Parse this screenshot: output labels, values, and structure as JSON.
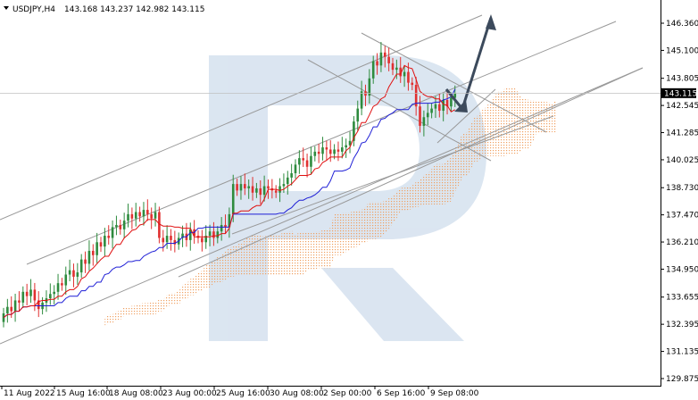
{
  "header": {
    "symbol": "USDJPY,H4",
    "ohlc": "143.168 143.237 142.982 143.115"
  },
  "colors": {
    "bull": "#2e8b3e",
    "bear": "#e03030",
    "kijun": "#1f1fd6",
    "tenkan": "#e01010",
    "cloud_up": "#f0a060",
    "cloud_down": "#c8a0c8",
    "lines": "#999999",
    "arrow": "#3c4a5c",
    "watermark": "#c8d8ea",
    "price_box": "#000000"
  },
  "chart_data": {
    "type": "candlestick",
    "title": "USDJPY,H4",
    "y_ticks": [
      "146.360",
      "145.100",
      "143.805",
      "142.545",
      "141.285",
      "140.025",
      "138.730",
      "137.470",
      "136.210",
      "134.950",
      "133.655",
      "132.395",
      "131.135",
      "129.875"
    ],
    "ylim": [
      129.875,
      147.0
    ],
    "x_ticks": [
      "11 Aug 2022",
      "15 Aug 16:00",
      "18 Aug 08:00",
      "23 Aug 00:00",
      "25 Aug 16:00",
      "30 Aug 08:00",
      "2 Sep 00:00",
      "6 Sep 16:00",
      "9 Sep 08:00"
    ],
    "current_price": "143.115",
    "n_bars": 117,
    "close": [
      132.9,
      133.2,
      133.0,
      133.5,
      133.4,
      133.9,
      133.7,
      134.0,
      133.5,
      133.1,
      133.4,
      133.6,
      133.8,
      133.9,
      134.3,
      134.2,
      134.7,
      134.9,
      134.6,
      134.8,
      135.4,
      135.2,
      135.8,
      135.6,
      136.2,
      136.0,
      136.5,
      136.4,
      136.9,
      137.0,
      136.8,
      137.2,
      137.5,
      137.3,
      137.6,
      137.4,
      137.7,
      137.5,
      137.3,
      137.6,
      136.4,
      136.2,
      136.5,
      136.3,
      136.1,
      136.4,
      136.6,
      136.3,
      136.8,
      136.5,
      136.4,
      136.2,
      136.5,
      136.7,
      136.4,
      136.7,
      137.0,
      136.9,
      137.5,
      138.9,
      138.6,
      138.9,
      138.7,
      138.8,
      138.5,
      138.7,
      138.4,
      138.8,
      138.7,
      138.6,
      138.5,
      138.8,
      138.9,
      139.2,
      139.4,
      139.8,
      140.1,
      140.0,
      139.7,
      140.2,
      140.4,
      140.3,
      140.6,
      140.5,
      140.3,
      140.5,
      140.4,
      140.6,
      140.7,
      140.9,
      141.8,
      142.4,
      143.2,
      143.0,
      143.8,
      144.6,
      144.4,
      145.0,
      144.8,
      144.5,
      144.2,
      144.3,
      143.9,
      144.1,
      143.6,
      143.5,
      142.5,
      141.6,
      142.0,
      142.2,
      142.4,
      142.6,
      142.3,
      142.8,
      142.5,
      142.9,
      143.1
    ]
  }
}
